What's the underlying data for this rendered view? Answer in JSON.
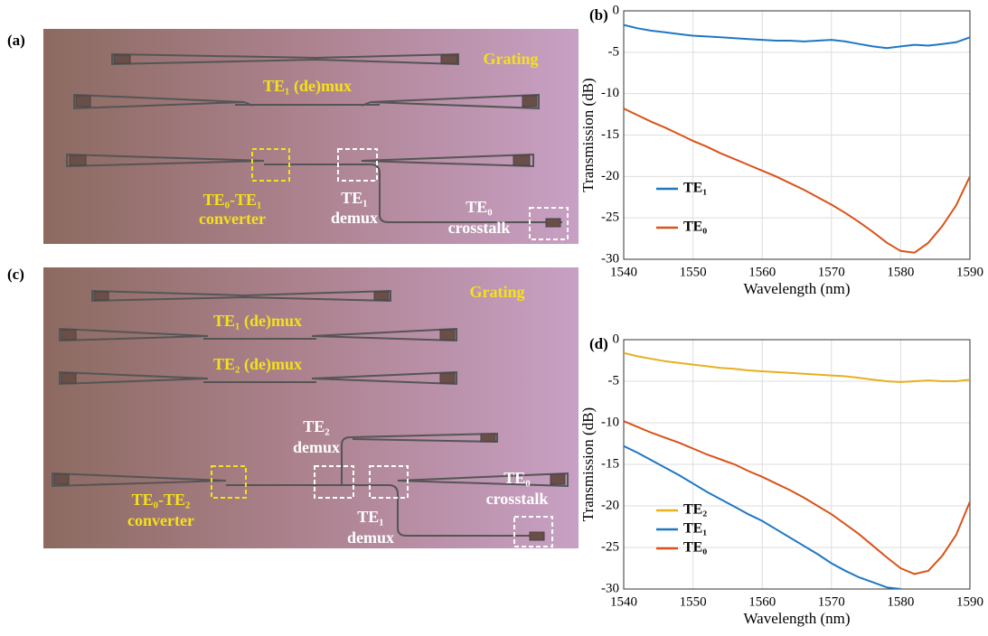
{
  "panels": [
    {
      "label": "(a)",
      "annotations": [
        "Grating",
        "TE₁ (de)mux",
        "TE₀-TE₁",
        "converter",
        "TE₁",
        "demux",
        "TE₀",
        "crosstalk"
      ]
    },
    {
      "label": "(c)",
      "annotations": [
        "Grating",
        "TE₁ (de)mux",
        "TE₂ (de)mux",
        "TE₂",
        "demux",
        "TE₀-TE₂",
        "converter",
        "TE₁",
        "demux",
        "TE₀",
        "crosstalk"
      ]
    }
  ],
  "chart_data": [
    {
      "type": "line",
      "label": "(b)",
      "x_label": "Wavelength (nm)",
      "y_label": "Transmission (dB)",
      "x": [
        1540,
        1542,
        1544,
        1546,
        1548,
        1550,
        1552,
        1554,
        1556,
        1558,
        1560,
        1562,
        1564,
        1566,
        1568,
        1570,
        1572,
        1574,
        1576,
        1578,
        1580,
        1582,
        1584,
        1586,
        1588,
        1590
      ],
      "series": [
        {
          "name": "TE₁",
          "color": "#1f77c4",
          "values": [
            -1.7,
            -2.1,
            -2.4,
            -2.6,
            -2.8,
            -3.0,
            -3.1,
            -3.2,
            -3.3,
            -3.4,
            -3.5,
            -3.6,
            -3.6,
            -3.7,
            -3.6,
            -3.5,
            -3.7,
            -4.0,
            -4.3,
            -4.5,
            -4.3,
            -4.1,
            -4.2,
            -4.0,
            -3.8,
            -3.2
          ]
        },
        {
          "name": "TE₀",
          "color": "#d95319",
          "values": [
            -11.8,
            -12.6,
            -13.4,
            -14.1,
            -14.9,
            -15.7,
            -16.4,
            -17.2,
            -17.9,
            -18.6,
            -19.3,
            -20.0,
            -20.8,
            -21.6,
            -22.5,
            -23.4,
            -24.4,
            -25.5,
            -26.7,
            -28.0,
            -29.0,
            -29.2,
            -28.0,
            -26.0,
            -23.5,
            -20.0
          ]
        }
      ],
      "xlim": [
        1540,
        1590
      ],
      "xticks": [
        1540,
        1550,
        1560,
        1570,
        1580,
        1590
      ],
      "ylim": [
        -30,
        0
      ],
      "yticks": [
        0,
        -5,
        -10,
        -15,
        -20,
        -25,
        -30
      ],
      "grid": true,
      "legend": "lower left"
    },
    {
      "type": "line",
      "label": "(d)",
      "x_label": "Wavelength (nm)",
      "y_label": "Transmission (dB)",
      "x": [
        1540,
        1542,
        1544,
        1546,
        1548,
        1550,
        1552,
        1554,
        1556,
        1558,
        1560,
        1562,
        1564,
        1566,
        1568,
        1570,
        1572,
        1574,
        1576,
        1578,
        1580,
        1582,
        1584,
        1586,
        1588,
        1590
      ],
      "series": [
        {
          "name": "TE₂",
          "color": "#e6b021",
          "values": [
            -1.6,
            -2.0,
            -2.3,
            -2.6,
            -2.8,
            -3.0,
            -3.2,
            -3.4,
            -3.5,
            -3.7,
            -3.8,
            -3.9,
            -4.0,
            -4.1,
            -4.2,
            -4.3,
            -4.4,
            -4.6,
            -4.8,
            -5.0,
            -5.1,
            -5.0,
            -4.9,
            -5.0,
            -5.0,
            -4.8
          ]
        },
        {
          "name": "TE₁",
          "color": "#1f77c4",
          "values": [
            -12.8,
            -13.6,
            -14.5,
            -15.4,
            -16.3,
            -17.3,
            -18.3,
            -19.2,
            -20.1,
            -21.0,
            -21.8,
            -22.8,
            -23.8,
            -24.8,
            -25.8,
            -26.9,
            -27.8,
            -28.6,
            -29.2,
            -29.8,
            -30.0,
            null,
            null,
            null,
            null,
            null
          ]
        },
        {
          "name": "TE₀",
          "color": "#d95319",
          "values": [
            -9.8,
            -10.5,
            -11.2,
            -11.8,
            -12.4,
            -13.1,
            -13.8,
            -14.4,
            -15.0,
            -15.8,
            -16.5,
            -17.3,
            -18.1,
            -19.0,
            -20.0,
            -21.0,
            -22.2,
            -23.4,
            -24.8,
            -26.2,
            -27.5,
            -28.2,
            -27.8,
            -26.0,
            -23.5,
            -19.5
          ]
        }
      ],
      "xlim": [
        1540,
        1590
      ],
      "xticks": [
        1540,
        1550,
        1560,
        1570,
        1580,
        1590
      ],
      "ylim": [
        -30,
        0
      ],
      "yticks": [
        0,
        -5,
        -10,
        -15,
        -20,
        -25,
        -30
      ],
      "grid": true,
      "legend": "lower left"
    }
  ]
}
